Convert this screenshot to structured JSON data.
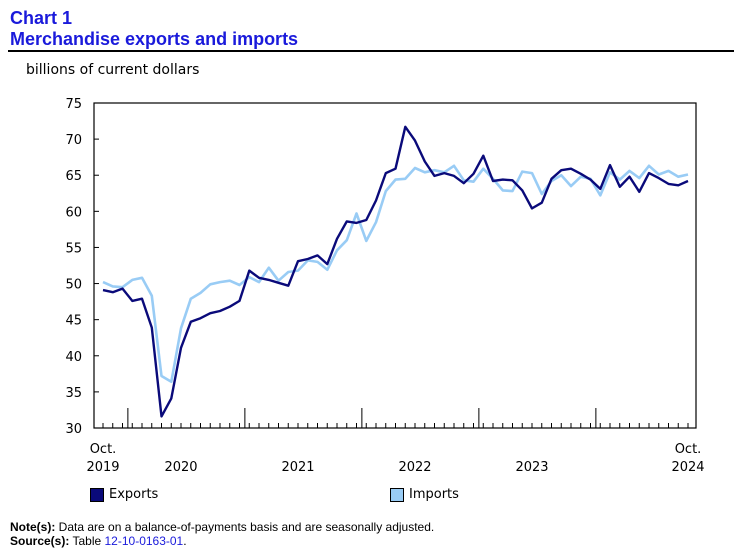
{
  "header": {
    "chart_label": "Chart 1",
    "title": "Merchandise exports and imports",
    "units": "billions of current dollars"
  },
  "legend": {
    "exports_label": "Exports",
    "imports_label": "Imports"
  },
  "notes": {
    "note_label": "Note(s):",
    "note_text": "Data are on a balance-of-payments basis and are seasonally adjusted.",
    "source_label": "Source(s):",
    "source_prefix": "Table ",
    "source_table": "12-10-0163-01",
    "source_suffix": "."
  },
  "colors": {
    "exports": "#0a0a7a",
    "imports": "#99ccf5",
    "link": "#1a1adb"
  },
  "chart_data": {
    "type": "line",
    "title": "Merchandise exports and imports",
    "ylabel": "billions of current dollars",
    "ylim": [
      30,
      75
    ],
    "yticks": [
      30,
      35,
      40,
      45,
      50,
      55,
      60,
      65,
      70,
      75
    ],
    "x_start": "Oct. 2019",
    "x_end": "Oct. 2024",
    "x_tick_labels": [
      {
        "index": 0,
        "lines": [
          "Oct.",
          "2019"
        ]
      },
      {
        "index": 8,
        "lines": [
          "",
          "2020"
        ]
      },
      {
        "index": 20,
        "lines": [
          "",
          "2021"
        ]
      },
      {
        "index": 32,
        "lines": [
          "",
          "2022"
        ]
      },
      {
        "index": 44,
        "lines": [
          "",
          "2023"
        ]
      },
      {
        "index": 60,
        "lines": [
          "Oct.",
          "2024"
        ]
      }
    ],
    "year_boundaries": [
      3,
      15,
      27,
      39,
      51
    ],
    "series": [
      {
        "name": "Exports",
        "values": [
          49.1,
          48.8,
          49.3,
          47.6,
          47.9,
          43.9,
          31.6,
          34.1,
          41.1,
          44.7,
          45.2,
          45.9,
          46.2,
          46.8,
          47.6,
          51.8,
          50.8,
          50.5,
          50.1,
          49.7,
          53.1,
          53.4,
          53.9,
          52.7,
          56.2,
          58.6,
          58.4,
          58.8,
          61.5,
          65.3,
          65.9,
          71.7,
          69.8,
          66.9,
          64.9,
          65.3,
          64.9,
          63.9,
          65.2,
          67.7,
          64.2,
          64.4,
          64.3,
          62.9,
          60.4,
          61.2,
          64.5,
          65.7,
          65.9,
          65.2,
          64.4,
          63.1,
          66.4,
          63.4,
          64.8,
          62.7,
          65.3,
          64.6,
          63.8,
          63.6,
          64.2
        ]
      },
      {
        "name": "Imports",
        "values": [
          50.2,
          49.6,
          49.5,
          50.5,
          50.8,
          48.3,
          37.2,
          36.4,
          43.8,
          47.9,
          48.7,
          49.9,
          50.2,
          50.4,
          49.8,
          50.9,
          50.2,
          52.2,
          50.4,
          51.6,
          51.8,
          53.2,
          53.0,
          51.9,
          54.6,
          56.0,
          59.7,
          55.9,
          58.5,
          62.8,
          64.4,
          64.5,
          66.0,
          65.4,
          65.7,
          65.4,
          66.3,
          64.3,
          64.1,
          65.9,
          64.5,
          62.9,
          62.8,
          65.5,
          65.3,
          62.4,
          64.2,
          65.0,
          63.5,
          64.8,
          64.5,
          62.2,
          65.4,
          64.4,
          65.6,
          64.6,
          66.3,
          65.1,
          65.6,
          64.8,
          65.1
        ]
      }
    ]
  }
}
